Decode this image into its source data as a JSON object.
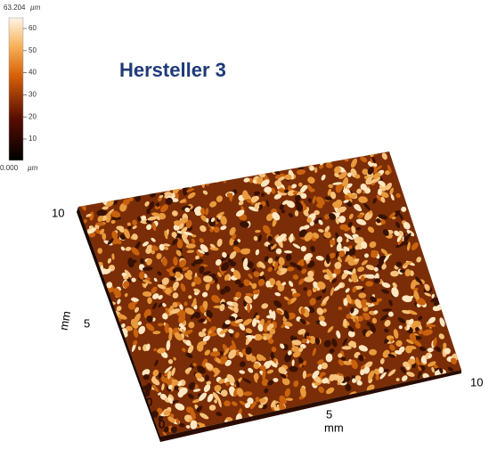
{
  "title": "Hersteller 3",
  "colorbar": {
    "max_value": "63.204",
    "min_value": "0.000",
    "unit": "µm",
    "ticks": [
      "60",
      "50",
      "40",
      "30",
      "20",
      "10"
    ]
  },
  "y_axis": {
    "label": "mm",
    "ticks": [
      "0",
      "5",
      "10"
    ]
  },
  "x_axis": {
    "label": "mm",
    "ticks": [
      "0",
      "5",
      "10"
    ]
  }
}
